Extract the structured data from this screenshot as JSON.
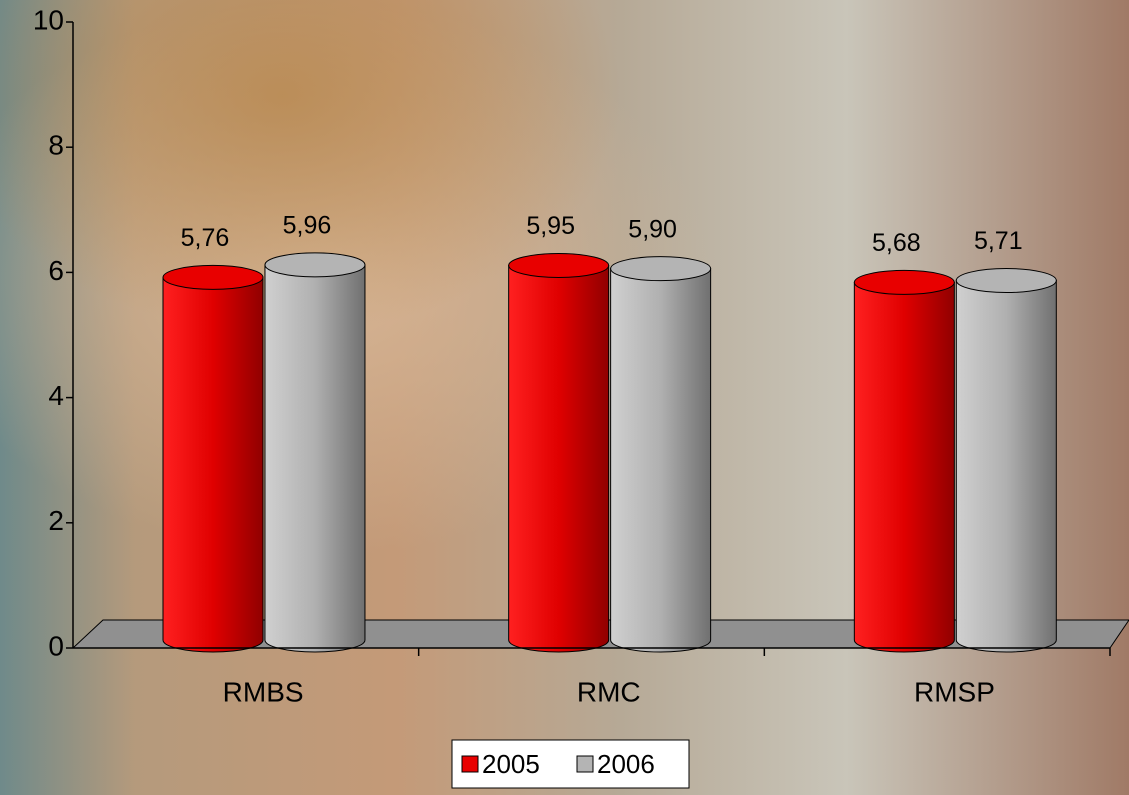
{
  "chart_data": {
    "type": "bar3d",
    "categories": [
      "RMBS",
      "RMC",
      "RMSP"
    ],
    "series": [
      {
        "name": "2005",
        "color": "#e80000",
        "values": [
          5.76,
          5.95,
          5.68
        ],
        "value_labels": [
          "5,76",
          "5,95",
          "5,68"
        ]
      },
      {
        "name": "2006",
        "color": "#b4b4b4",
        "values": [
          5.96,
          5.9,
          5.71
        ],
        "value_labels": [
          "5,96",
          "5,90",
          "5,71"
        ]
      }
    ],
    "ylim": [
      0,
      10
    ],
    "yticks": [
      0,
      2,
      4,
      6,
      8,
      10
    ],
    "legend": "bottom"
  }
}
